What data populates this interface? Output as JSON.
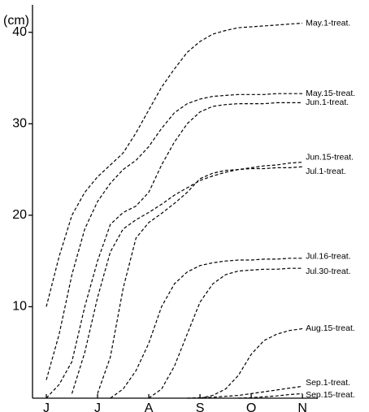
{
  "chart_data": {
    "type": "line",
    "y_label": "(cm)",
    "x": [
      0,
      0.25,
      0.5,
      0.75,
      1,
      1.25,
      1.5,
      1.75,
      2,
      2.25,
      2.5,
      2.75,
      3,
      3.25,
      3.5,
      3.75,
      4,
      4.25,
      4.5,
      4.75,
      5
    ],
    "xlim": [
      -0.27,
      5.3
    ],
    "xticks": [
      {
        "value": 0,
        "label": "J"
      },
      {
        "value": 1,
        "label": "J"
      },
      {
        "value": 2,
        "label": "A"
      },
      {
        "value": 3,
        "label": "S"
      },
      {
        "value": 4,
        "label": "O"
      },
      {
        "value": 5,
        "label": "N"
      }
    ],
    "ylim": [
      0,
      43
    ],
    "yticks": [
      10,
      20,
      30,
      40
    ],
    "grid": false,
    "line_style": "dashed",
    "series": [
      {
        "name": "May.1-treat.",
        "color": "#000000",
        "values": [
          10,
          15.5,
          20,
          22.5,
          24.2,
          25.5,
          26.8,
          29,
          31.5,
          34,
          36,
          37.8,
          39,
          39.8,
          40.2,
          40.5,
          40.6,
          40.7,
          40.8,
          40.9,
          41
        ]
      },
      {
        "name": "May.15-treat.",
        "color": "#000000",
        "values": [
          2,
          7,
          13.5,
          18.5,
          21.5,
          23.5,
          25,
          26,
          27.5,
          29.5,
          31.2,
          32.2,
          32.7,
          33,
          33.1,
          33.2,
          33.2,
          33.2,
          33.3,
          33.3,
          33.3
        ]
      },
      {
        "name": "Jun.1-treat.",
        "color": "#000000",
        "values": [
          0,
          1.5,
          4,
          10,
          15,
          19,
          20.3,
          21,
          22.5,
          25.5,
          28,
          30,
          31.3,
          31.9,
          32.1,
          32.2,
          32.2,
          32.2,
          32.3,
          32.3,
          32.3
        ]
      },
      {
        "name": "Jun.15-treat.",
        "color": "#000000",
        "values": [
          null,
          null,
          0.5,
          5,
          11,
          16,
          18.5,
          19.5,
          20.3,
          21.2,
          22.2,
          23,
          23.8,
          24.3,
          24.7,
          25,
          25.2,
          25.4,
          25.5,
          25.7,
          25.8
        ]
      },
      {
        "name": "Jul.1-treat.",
        "color": "#000000",
        "values": [
          null,
          null,
          null,
          null,
          0.5,
          4.5,
          12,
          17.5,
          19.2,
          20.2,
          21.3,
          22.5,
          24,
          24.6,
          24.9,
          25,
          25.1,
          25.1,
          25.2,
          25.2,
          25.3
        ]
      },
      {
        "name": "Jul.16-treat.",
        "color": "#000000",
        "values": [
          null,
          null,
          null,
          null,
          null,
          0,
          1,
          3,
          6,
          10,
          12.5,
          13.8,
          14.5,
          14.8,
          15,
          15.1,
          15.1,
          15.2,
          15.2,
          15.3,
          15.3
        ]
      },
      {
        "name": "Jul.30-treat.",
        "color": "#000000",
        "values": [
          null,
          null,
          null,
          null,
          null,
          null,
          null,
          null,
          0,
          1,
          3.5,
          7,
          10.5,
          12.5,
          13.5,
          13.9,
          14,
          14.1,
          14.1,
          14.2,
          14.2
        ]
      },
      {
        "name": "Aug.15-treat.",
        "color": "#000000",
        "values": [
          null,
          null,
          null,
          null,
          null,
          null,
          null,
          null,
          null,
          null,
          null,
          null,
          0,
          0.3,
          1,
          2.5,
          4.8,
          6.3,
          7,
          7.4,
          7.6
        ]
      },
      {
        "name": "Sep.1-treat.",
        "color": "#000000",
        "values": [
          null,
          null,
          null,
          null,
          null,
          null,
          null,
          null,
          null,
          null,
          null,
          0,
          0.05,
          0.1,
          0.2,
          0.3,
          0.5,
          0.7,
          0.9,
          1.1,
          1.3
        ]
      },
      {
        "name": "Sep.15-treat.",
        "color": "#000000",
        "values": [
          null,
          null,
          null,
          null,
          null,
          null,
          null,
          null,
          null,
          null,
          null,
          null,
          null,
          null,
          null,
          0,
          0.05,
          0.15,
          0.25,
          0.4,
          0.5
        ]
      }
    ]
  }
}
